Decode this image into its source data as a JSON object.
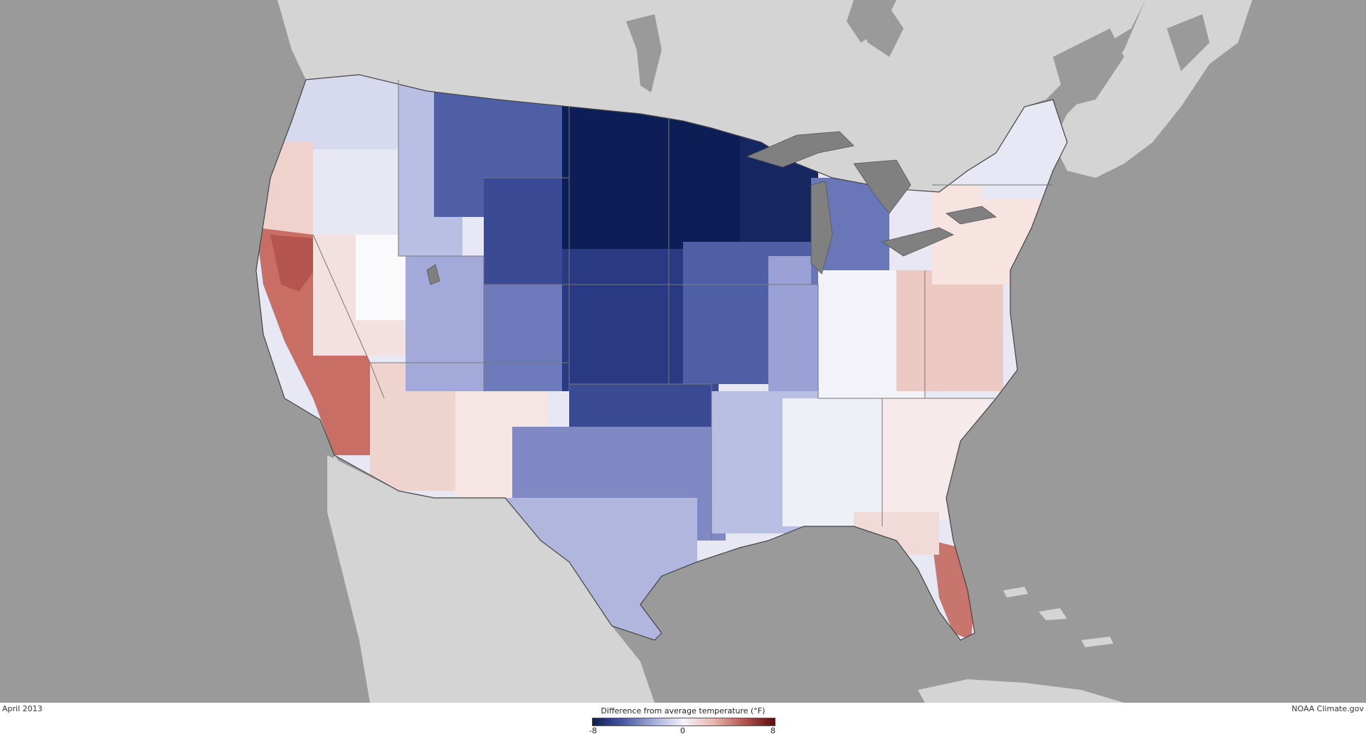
{
  "map": {
    "date_label": "April 2013",
    "credit": "NOAA Climate.gov",
    "legend": {
      "title": "Difference from average temperature (°F)",
      "min_label": "-8",
      "mid_label": "0",
      "max_label": "8",
      "color_scale": [
        "#0d1d55",
        "#4a5aa3",
        "#a6addc",
        "#f4f4fa",
        "#e9b7b0",
        "#b4554f",
        "#5a0d0d"
      ]
    },
    "colors": {
      "ocean": "#9a9a9a",
      "outside_land": "#d4d4d4",
      "lakes": "#808080"
    }
  }
}
